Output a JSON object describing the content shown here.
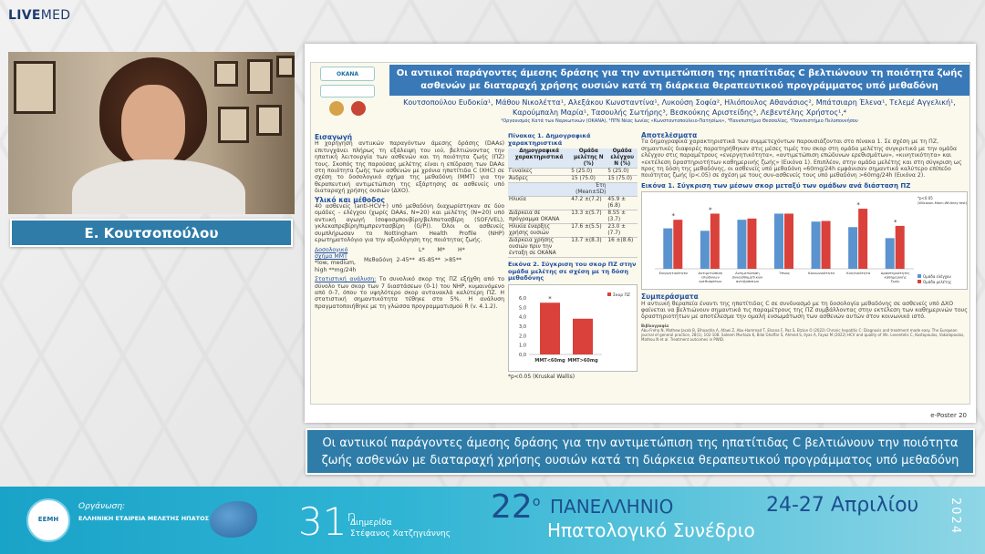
{
  "brand": {
    "live": "LIVE",
    "med": "MED"
  },
  "speaker": {
    "name": "Ε. Κουτσοπούλου"
  },
  "poster": {
    "title": "Οι αντιικοί παράγοντες άμεσης δράσης για την αντιμετώπιση της ηπατίτιδας C βελτιώνουν τη ποιότητα ζωής ασθενών με διαταραχή χρήσης ουσιών κατά τη διάρκεια θεραπευτικού προγράμματος υπό μεθαδόνη",
    "authors": "Κουτσοπούλου Ευδοκία¹, Μάθου Νικολέττα¹, Αλεξάκου Κωνσταντίνα¹, Λυκούση Σοφία², Ηλιόπουλος Αθανάσιος², Μπάτσιαρη Έλενα¹, Τελεμέ Αγγελική¹, Καρούμπαλη Μαρία¹, Τασουλής Σωτήρης³, Βεσκούκης Αριστείδης³, Λεβεντέλης Χρήστος¹,⁴",
    "affiliations": "¹Οργανισμός Κατά των Ναρκωτικών (ΟΚΑΝΑ), ²ΠΓΝ Νέας Ιωνίας «Κωνσταντοπούλειο-Πατησίων», ³Πανεπιστήμιο Θεσσαλίας, ⁴Πανεπιστήμιο Πελοποννήσου",
    "logo_label": "ΟΚΑΝΑ",
    "intro_head": "Εισαγωγή",
    "intro": "Η χορήγηση αντιικών παραγόντων άμεσης δράσης (DAAs) επιτυγχάνει πλήρως τη εξάλειψη του ιού, βελτιώνοντας την ηπατική λειτουργία των ασθενών και τη ποιότητα ζωής (ΠΖ) τους. Σκοπός της παρούσας μελέτης είναι η επίδραση των DAAs στη ποιότητα ζωής των ασθενών με χρόνια ηπατίτιδα C (ΧΗC) σε σχέση το δοσολογικό σχήμα της μεθαδόνη (ΜΜΤ) για την θεραπευτική αντιμετώπιση της εξάρτησης σε ασθενείς υπό διαταραχή χρήσης ουσιών (ΔΧΟ).",
    "methods_head": "Υλικό και μέθοδος",
    "methods": "40 ασθενείς (anti-HCV+) υπό μεθαδόνη διαχωρίστηκαν σε δύο ομάδες - ελέγχου (χωρίς DAAs, N=20) και μελέτης (N=20) υπό αντιική αγωγή (σοφοσμπουβίρη/βελπατασβίρη (SOF/VEL), γκλεκαπρεβίρη/πιμπρεντασβίρη (G/P)). Όλοι οι ασθενείς συμπλήρωσαν το Nottingham Health Profile (NHP) ερωτηματολόγιο για την αξιολόγηση της ποιότητας ζωής.",
    "mmt_label": "Δοσολογικό σχήμα ΜΜΤ",
    "mmt_note": "*low, medium, high **mg/24h",
    "mmt_method": "Μεθαδόνη",
    "mmt_L": "L*",
    "mmt_M": "M*",
    "mmt_H": "H*",
    "mmt_Lv": "2-45**",
    "mmt_Mv": "45-85**",
    "mmt_Hv": ">85**",
    "stats_head": "Στατιστική ανάλυση:",
    "stats": "Το συνολικό σκορ της ΠΖ εξήχθη από το σύνολο των σκορ των 7 διαστάσεων (0-1) του NHP, κυμαινόμενο από 0-7, όπου το υψηλότερο σκορ αντανακλά καλύτερη ΠΖ. Η στατιστική σημαντικότητα τέθηκε στο 5%. Η ανάλυση πραγματοποιήθηκε με τη γλώσσα προγραμματισμού R (v. 4.1.2).",
    "table1_caption": "Πίνακας 1. Δημογραφικά χαρακτηριστικά",
    "table1_headers": [
      "Δημογραφικά χαρακτηριστικά",
      "Ομάδα μελέτης N (%)",
      "Ομάδα ελέγχου N (%)"
    ],
    "table1_rows": [
      [
        "Γυναίκες",
        "5 (25.0)",
        "5 (25.0)"
      ],
      [
        "Άνδρες",
        "15 (75.0)",
        "15 (75.0)"
      ],
      [
        "",
        "Έτη (Mean±SD)",
        ""
      ],
      [
        "Ηλικία",
        "47.2 ±(7.2)",
        "45.9 ±(6.8)"
      ],
      [
        "Διάρκεια σε πρόγραμμα ΟΚΑΝΑ",
        "13.3 ±(5.7)",
        "8.55 ±(3.7)"
      ],
      [
        "Ηλικία έναρξης χρήσης ουσιών",
        "17.6 ±(5.5)",
        "23.0 ±(7.7)"
      ],
      [
        "Διάρκεια χρήσης ουσιών πριν την ένταξη σε ΟΚΑΝΑ",
        "13.7 ±(8.3)",
        "16 ±(8.6)"
      ]
    ],
    "fig2_caption": "Εικόνα 2. Σύγκριση του σκορ ΠΖ στην ομάδα μελέτης σε σχέση με τη δόση μεθαδόνης",
    "fig2_note": "*p<0.05 (Kruskal Wallis)",
    "results_head": "Αποτελέσματα",
    "results": "Τα δημογραφικά χαρακτηριστικά των συμμετεχόντων παρουσιάζονται στο πίνακα 1. Σε σχέση με τη ΠΖ, σημαντικές διαφορές παρατηρήθηκαν στις μέσες τιμές του σκορ στη ομάδα μελέτης συγκριτικά με την ομάδα ελέγχου στις παραμέτρους «ενεργητικότητα», «αντιμετώπιση επώδυνων ερεθισμάτων», «κινητικότητα» και «εκτέλεση δραστηριοτήτων καθημερινής ζωής» (Εικόνα 1). Επιπλέον, στην ομάδα μελέτης και στη σύγκριση ως προς τη δόση της μεθαδόνης, οι ασθενείς υπό μεθαδόνη «60mg/24h εμφάνισαν σημαντικά καλύτερο επίπεδο ποιότητας ζωής (p<.05) σε σχέση με τους συν-ασθενείς τους υπό μεθαδόνη >60mg/24h (Εικόνα 2).",
    "fig1_caption": "Εικόνα 1. Σύγκριση των μέσων σκορ μεταξύ των ομάδων ανά διάσταση ΠΖ",
    "conclusion_head": "Συμπεράσματα",
    "conclusion": "Η αντιιική θεραπεία έναντι της ηπατίτιδας C σε συνδυασμό με τη δοσολογία μεθαδόνης σε ασθενείς υπό ΔΧΟ φαίνεται να βελτιώνουν σημαντικά τις παραμέτρους της ΠΖ συμβάλλοντας στην εκτέλεση των καθημερινών τους δραστηριοτήτων με αποτέλεσμα την ομαλή ενσωμάτωση των ασθενών αυτών στον κοινωνικό ιστό.",
    "refs_head": "Βιβλιογραφία",
    "refs": "Abu-Freha N, Mathew Jacob B, Elhoashla A, Afawi Z, Abu-Hammad T, Elsana F, Paz S, Etzion O (2022) Chronic hepatitis C: Diagnosis and treatment made easy. The European journal of general practice, 28(1), 102-108. Saleem Murtaza K, Bilal Ghaffar S, Ahmed S, Ilyas A, Fayaz M (2022) HCV and quality of life. Leventelis C, Kostopoulos, Vakalopoulos, Mathou N et al. Treatment outcomes in PWID.",
    "footer_id": "e-Poster 20"
  },
  "chart_data": [
    {
      "type": "bar",
      "title": "Εικόνα 1. Σύγκριση των μέσων σκορ μεταξύ των ομάδων ανά διάσταση ΠΖ",
      "categories": [
        "Ενεργητικότητα",
        "Αντιμετώπιση επώδυνων ερεθισμάτων",
        "Αντιμετώπιση συναισθηματικών αντιδράσεων",
        "Ύπνος",
        "Κοινωνικότητα",
        "Κινητικότητα",
        "Δραστηριότητες καθημερινής ζωής"
      ],
      "series": [
        {
          "name": "Ομάδα ελέγχου",
          "values": [
            0.66,
            0.62,
            0.8,
            0.9,
            0.77,
            0.68,
            0.5
          ]
        },
        {
          "name": "Ομάδα μελέτης",
          "values": [
            0.8,
            0.9,
            0.82,
            0.9,
            0.78,
            0.98,
            0.7
          ]
        }
      ],
      "significant": [
        true,
        true,
        false,
        false,
        false,
        true,
        true
      ],
      "legend_note": "*p<0.05 (Wilcoxon-Mann-Whitney test)",
      "ylim": [
        0,
        1.1
      ]
    },
    {
      "type": "bar",
      "title": "Εικόνα 2. Σύγκριση του σκορ ΠΖ στην ομάδα μελέτης σε σχέση με τη δόση μεθαδόνης",
      "categories": [
        "MMT<60mg",
        "MMT>60mg"
      ],
      "series": [
        {
          "name": "Σκορ ΠΖ",
          "values": [
            5.5,
            3.8
          ]
        }
      ],
      "yticks": [
        "6,0",
        "5,0",
        "4,0",
        "3,0",
        "2,0",
        "1,0",
        "0,0"
      ],
      "ylim": [
        0,
        6.2
      ]
    }
  ],
  "caption": "Οι αντιικοί παράγοντες άμεσης δράσης για την αντιμετώπιση της ηπατίτιδας C βελτιώνουν την ποιότητα ζωής ασθενών με διαταραχή χρήσης ουσιών κατά τη διάρκεια θεραπευτικού προγράμματος υπό μεθαδόνη",
  "footer": {
    "org_label": "Οργάνωση:",
    "org_name": "ΕΛΛΗΝΙΚΗ ΕΤΑΙΡΕΙΑ ΜΕΛΕΤΗΣ ΗΠΑΤΟΣ",
    "emblem": "ΕΕΜΗ",
    "num31": "31",
    "sup31": "η",
    "dimerida": "Διημερίδα",
    "honoree": "Στέφανος Χατζηγιάννης",
    "num22": "22",
    "sup22": "ο",
    "panellinio": "ΠΑΝΕΛΛΗΝΙΟ",
    "hepato": "Ηπατολογικό Συνέδριο",
    "dates": "24-27 Απριλίου",
    "year": "2024"
  },
  "colors": {
    "accent": "#2f7ca8",
    "title_bar": "#3a79b8",
    "control_bar": "#5b93cf",
    "study_bar": "#d9413a"
  }
}
